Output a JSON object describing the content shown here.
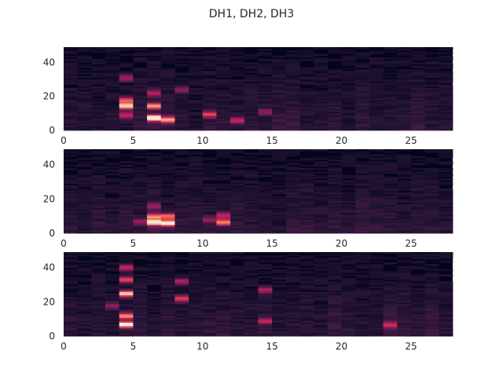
{
  "chart_data": {
    "type": "heatmap",
    "title": "DH1, DH2, DH3",
    "colormap": "rocket",
    "colormap_stops": [
      "#03051a",
      "#2a1637",
      "#5b1e51",
      "#8e1d5b",
      "#c21e57",
      "#e8484d",
      "#f5916b",
      "#f9d3b6",
      "#faebdd"
    ],
    "panels": [
      {
        "name": "DH1",
        "xlim": [
          0,
          28
        ],
        "ylim": [
          0,
          49
        ],
        "xticks": [
          "0",
          "5",
          "10",
          "15",
          "20",
          "25"
        ],
        "yticks": [
          "0",
          "20",
          "40"
        ],
        "hotspots": [
          {
            "x": 4.5,
            "y": 14.5,
            "v": 0.85
          },
          {
            "x": 4.5,
            "y": 18,
            "v": 0.55
          },
          {
            "x": 4.5,
            "y": 9,
            "v": 0.45
          },
          {
            "x": 4.5,
            "y": 31,
            "v": 0.35
          },
          {
            "x": 6.5,
            "y": 7.5,
            "v": 0.95
          },
          {
            "x": 6.5,
            "y": 14.5,
            "v": 0.65
          },
          {
            "x": 6.5,
            "y": 22,
            "v": 0.4
          },
          {
            "x": 7.5,
            "y": 6.5,
            "v": 0.7
          },
          {
            "x": 8.5,
            "y": 24,
            "v": 0.3
          },
          {
            "x": 10.5,
            "y": 9.5,
            "v": 0.5
          },
          {
            "x": 12.5,
            "y": 6,
            "v": 0.4
          },
          {
            "x": 14.5,
            "y": 11,
            "v": 0.3
          }
        ]
      },
      {
        "name": "DH2",
        "xlim": [
          0,
          28
        ],
        "ylim": [
          0,
          49
        ],
        "xticks": [
          "0",
          "5",
          "10",
          "15",
          "20",
          "25"
        ],
        "yticks": [
          "0",
          "20",
          "40"
        ],
        "hotspots": [
          {
            "x": 6.5,
            "y": 6.5,
            "v": 0.85
          },
          {
            "x": 6.5,
            "y": 10,
            "v": 0.6
          },
          {
            "x": 7.5,
            "y": 6,
            "v": 0.95
          },
          {
            "x": 7.5,
            "y": 10,
            "v": 0.6
          },
          {
            "x": 6.5,
            "y": 16,
            "v": 0.3
          },
          {
            "x": 11.5,
            "y": 6.5,
            "v": 0.65
          },
          {
            "x": 11.5,
            "y": 10.5,
            "v": 0.4
          },
          {
            "x": 10.5,
            "y": 8,
            "v": 0.3
          },
          {
            "x": 5.5,
            "y": 7,
            "v": 0.3
          }
        ]
      },
      {
        "name": "DH3",
        "xlim": [
          0,
          28
        ],
        "ylim": [
          0,
          49
        ],
        "xticks": [
          "0",
          "5",
          "10",
          "15",
          "20",
          "25"
        ],
        "yticks": [
          "0",
          "20",
          "40"
        ],
        "hotspots": [
          {
            "x": 4.5,
            "y": 7,
            "v": 0.95
          },
          {
            "x": 4.5,
            "y": 12,
            "v": 0.65
          },
          {
            "x": 4.5,
            "y": 25,
            "v": 0.8
          },
          {
            "x": 4.5,
            "y": 33,
            "v": 0.55
          },
          {
            "x": 4.5,
            "y": 40,
            "v": 0.45
          },
          {
            "x": 8.5,
            "y": 22,
            "v": 0.55
          },
          {
            "x": 8.5,
            "y": 32,
            "v": 0.4
          },
          {
            "x": 14.5,
            "y": 27,
            "v": 0.4
          },
          {
            "x": 14.5,
            "y": 9,
            "v": 0.4
          },
          {
            "x": 23.5,
            "y": 7,
            "v": 0.4
          },
          {
            "x": 3.5,
            "y": 18,
            "v": 0.3
          }
        ]
      }
    ]
  }
}
